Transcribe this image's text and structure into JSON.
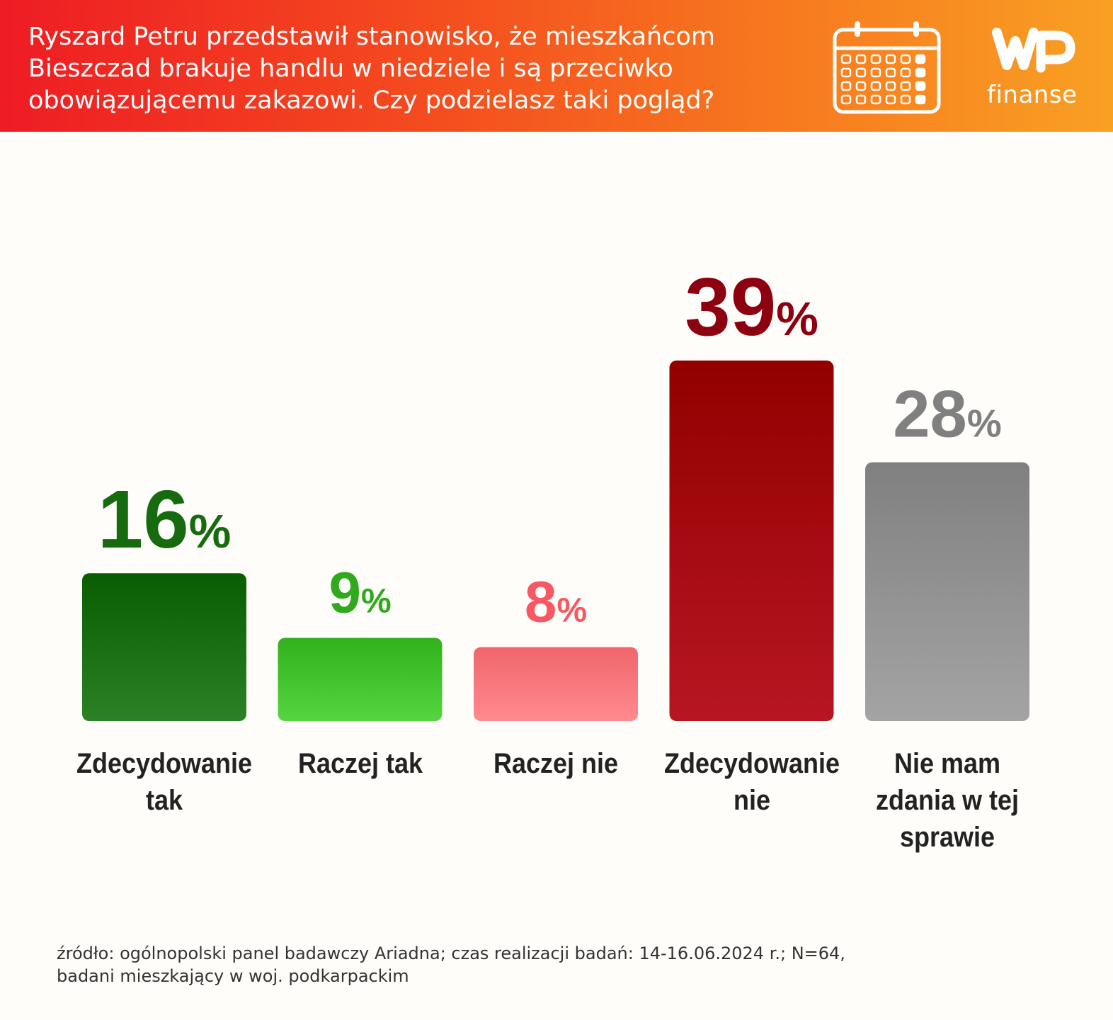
{
  "header": {
    "question": "Ryszard Petru przedstawił stanowisko, że mieszkańcom Bieszczad brakuje handlu w niedziele i są przeciwko obowiązującemu zakazowi. Czy podzielasz taki pogląd?",
    "logo_wordmark": "WP",
    "logo_text": "finanse",
    "icon": "calendar-icon"
  },
  "chart_data": {
    "type": "bar",
    "categories": [
      "Zdecydowanie tak",
      "Raczej tak",
      "Raczej nie",
      "Zdecydowanie nie",
      "Nie mam zdania w tej sprawie"
    ],
    "values": [
      16,
      9,
      8,
      39,
      28
    ],
    "value_labels": [
      "16%",
      "9%",
      "8%",
      "39%",
      "28%"
    ],
    "colors": [
      "#176b0f",
      "#3fbf2a",
      "#ff7479",
      "#a1000b",
      "#8e8e8e"
    ],
    "label_colors": [
      "#176b0f",
      "#2faa1c",
      "#f75863",
      "#8c0010",
      "#808080"
    ],
    "grid": false,
    "legend": "none"
  },
  "footer": {
    "source_line1": "źródło: ogólnopolski panel badawczy Ariadna; czas realizacji badań: 14-16.06.2024 r.; N=64,",
    "source_line2": "badani mieszkający w woj. podkarpackim"
  }
}
